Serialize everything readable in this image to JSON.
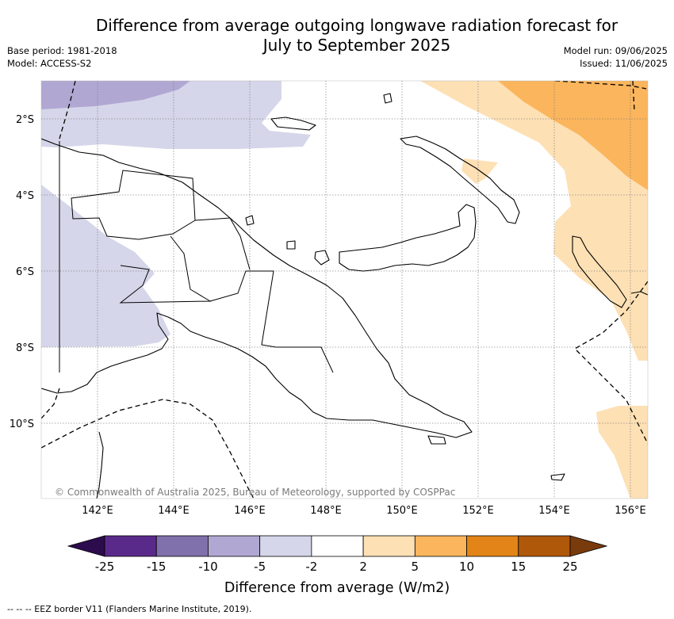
{
  "title_line1": "Difference from average outgoing longwave radiation forecast for",
  "title_line2": "July to September 2025",
  "meta_left": {
    "base_period": "Base period: 1981-2018",
    "model": "Model: ACCESS-S2"
  },
  "meta_right": {
    "model_run": "Model run: 09/06/2025",
    "issued": "Issued: 11/06/2025"
  },
  "lat_labels": [
    "2°S",
    "4°S",
    "6°S",
    "8°S",
    "10°S"
  ],
  "lon_labels": [
    "142°E",
    "144°E",
    "146°E",
    "148°E",
    "150°E",
    "152°E",
    "154°E",
    "156°E"
  ],
  "copyright": "© Commonwealth of Australia 2025, Bureau of Meteorology, supported by COSPPac",
  "colorbar": {
    "ticks": [
      "-25",
      "-15",
      "-10",
      "-5",
      "-2",
      "2",
      "5",
      "10",
      "15",
      "25"
    ],
    "colors": [
      "#5a2a8a",
      "#8070ab",
      "#b0a8d2",
      "#d6d6ea",
      "#ffffff",
      "#fde0b4",
      "#fbb55c",
      "#e28417",
      "#b0580a"
    ],
    "under_color": "#2d0c4e",
    "over_color": "#7a3b0c",
    "label": "Difference from average (W/m2)"
  },
  "footer_text": "--  --  -- EEZ border V11 (Flanders Marine Institute, 2019)."
}
